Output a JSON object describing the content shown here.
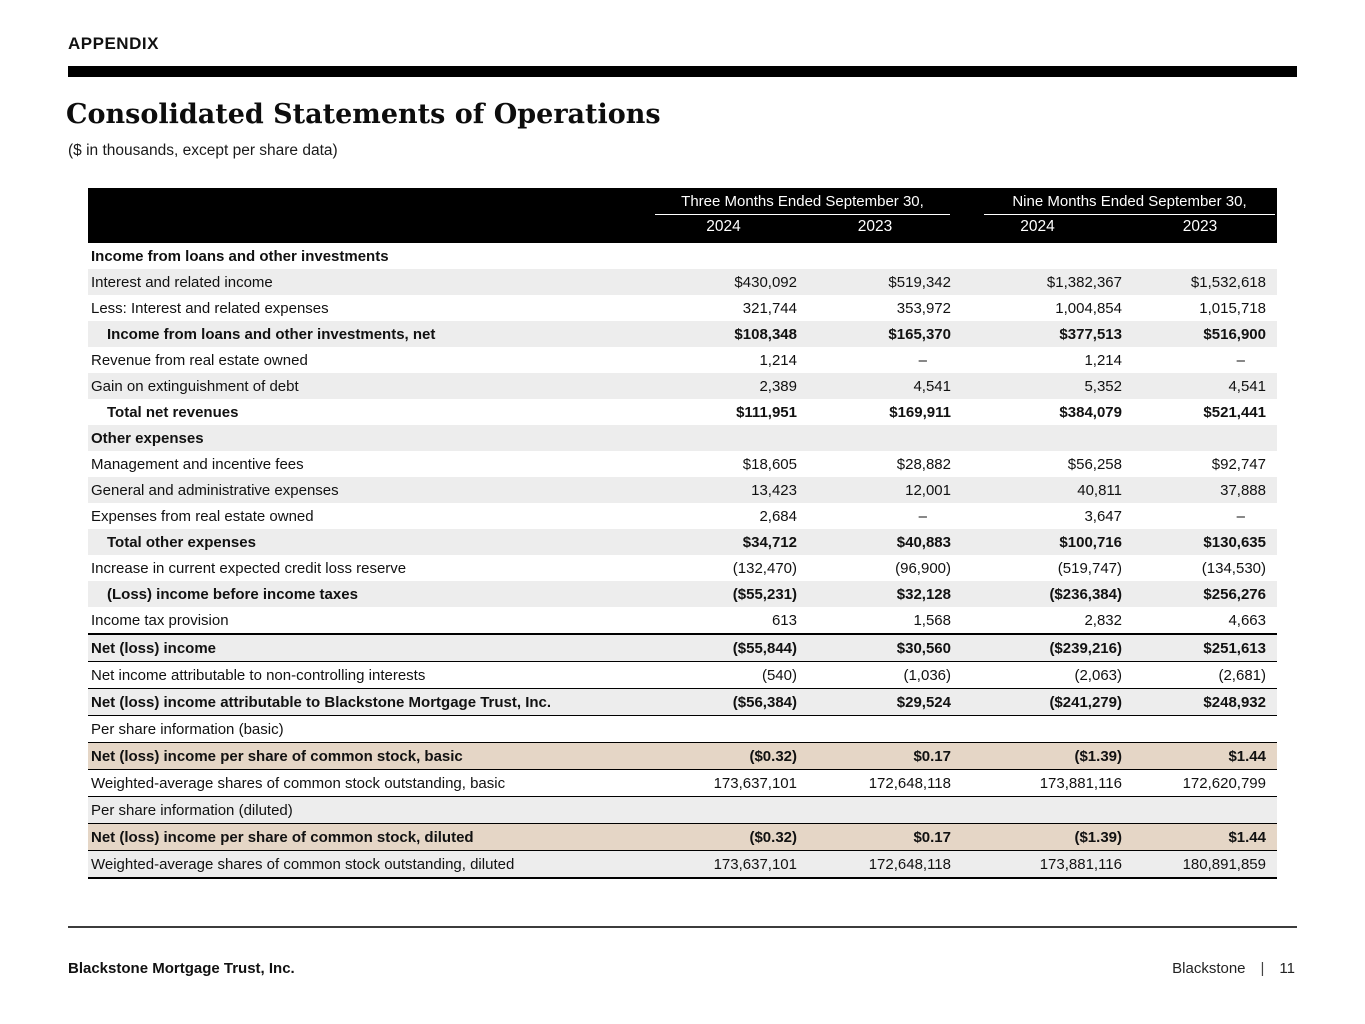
{
  "colors": {
    "header_bg": "#000000",
    "row_gray": "#ededed",
    "row_tan": "#e5d6c6"
  },
  "page": {
    "appendix_label": "APPENDIX",
    "title": "Consolidated Statements of Operations",
    "subtitle": "($ in thousands, except per share data)"
  },
  "table": {
    "col_groups": [
      {
        "label": "Three Months Ended September 30,",
        "years": [
          "2024",
          "2023"
        ]
      },
      {
        "label": "Nine Months Ended September 30,",
        "years": [
          "2024",
          "2023"
        ]
      }
    ],
    "rows": [
      {
        "label": "Income from loans and other investments",
        "values": [
          "",
          "",
          "",
          ""
        ],
        "bold": true,
        "bg": "white"
      },
      {
        "label": "Interest and related income",
        "values": [
          "$430,092",
          "$519,342",
          "$1,382,367",
          "$1,532,618"
        ],
        "bg": "gray"
      },
      {
        "label": "Less: Interest and related expenses",
        "values": [
          "321,744",
          "353,972",
          "1,004,854",
          "1,015,718"
        ],
        "bg": "white"
      },
      {
        "label": "Income from loans and other investments, net",
        "values": [
          "$108,348",
          "$165,370",
          "$377,513",
          "$516,900"
        ],
        "bold": true,
        "indent": true,
        "bg": "gray"
      },
      {
        "label": "Revenue from real estate owned",
        "values": [
          "1,214",
          "–",
          "1,214",
          "–"
        ],
        "bg": "white"
      },
      {
        "label": "Gain on extinguishment of debt",
        "values": [
          "2,389",
          "4,541",
          "5,352",
          "4,541"
        ],
        "bg": "gray"
      },
      {
        "label": "Total net revenues",
        "values": [
          "$111,951",
          "$169,911",
          "$384,079",
          "$521,441"
        ],
        "bold": true,
        "indent": true,
        "bg": "white"
      },
      {
        "label": "Other expenses",
        "values": [
          "",
          "",
          "",
          ""
        ],
        "bold": true,
        "bg": "gray"
      },
      {
        "label": "Management and incentive fees",
        "values": [
          "$18,605",
          "$28,882",
          "$56,258",
          "$92,747"
        ],
        "bg": "white"
      },
      {
        "label": "General and administrative expenses",
        "values": [
          "13,423",
          "12,001",
          "40,811",
          "37,888"
        ],
        "bg": "gray"
      },
      {
        "label": "Expenses from real estate owned",
        "values": [
          "2,684",
          "–",
          "3,647",
          "–"
        ],
        "bg": "white"
      },
      {
        "label": "Total other expenses",
        "values": [
          "$34,712",
          "$40,883",
          "$100,716",
          "$130,635"
        ],
        "bold": true,
        "indent": true,
        "bg": "gray"
      },
      {
        "label": "Increase in current expected credit loss reserve",
        "values": [
          "(132,470)",
          "(96,900)",
          "(519,747)",
          "(134,530)"
        ],
        "bg": "white"
      },
      {
        "label": "(Loss) income before income taxes",
        "values": [
          "($55,231)",
          "$32,128",
          "($236,384)",
          "$256,276"
        ],
        "bold": true,
        "indent": true,
        "bg": "gray"
      },
      {
        "label": "Income tax provision",
        "values": [
          "613",
          "1,568",
          "2,832",
          "4,663"
        ],
        "bg": "white"
      },
      {
        "label": "Net (loss) income",
        "values": [
          "($55,844)",
          "$30,560",
          "($239,216)",
          "$251,613"
        ],
        "bold": true,
        "bg": "gray",
        "bt": true,
        "bb": true
      },
      {
        "label": "Net income attributable to non-controlling interests",
        "values": [
          "(540)",
          "(1,036)",
          "(2,063)",
          "(2,681)"
        ],
        "bg": "white",
        "bb": true
      },
      {
        "label": "Net (loss) income attributable to Blackstone Mortgage Trust, Inc.",
        "values": [
          "($56,384)",
          "$29,524",
          "($241,279)",
          "$248,932"
        ],
        "bold": true,
        "bg": "gray",
        "bb": true
      },
      {
        "label": "Per share information (basic)",
        "values": [
          "",
          "",
          "",
          ""
        ],
        "bg": "white",
        "bb": true
      },
      {
        "label": "Net (loss) income per share of common stock, basic",
        "values": [
          "($0.32)",
          "$0.17",
          "($1.39)",
          "$1.44"
        ],
        "bold": true,
        "bg": "tan",
        "bb": true
      },
      {
        "label": "Weighted-average shares of common stock outstanding, basic",
        "values": [
          "173,637,101",
          "172,648,118",
          "173,881,116",
          "172,620,799"
        ],
        "bg": "white",
        "bb": true
      },
      {
        "label": "Per share information (diluted)",
        "values": [
          "",
          "",
          "",
          ""
        ],
        "bg": "gray",
        "bb": true
      },
      {
        "label": "Net (loss) income per share of common stock, diluted",
        "values": [
          "($0.32)",
          "$0.17",
          "($1.39)",
          "$1.44"
        ],
        "bold": true,
        "bg": "tan",
        "bb": true
      },
      {
        "label": "Weighted-average shares of common stock outstanding, diluted",
        "values": [
          "173,637,101",
          "172,648,118",
          "173,881,116",
          "180,891,859"
        ],
        "bg": "gray",
        "bb2": true
      }
    ]
  },
  "footer": {
    "left": "Blackstone Mortgage Trust, Inc.",
    "brand": "Blackstone",
    "separator": "|",
    "page_number": "11"
  }
}
